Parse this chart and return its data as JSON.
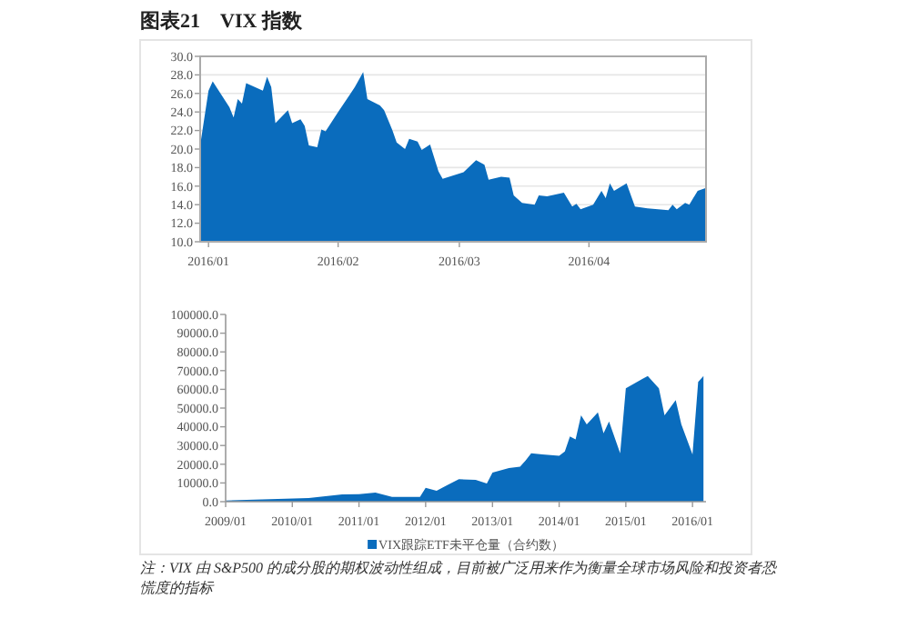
{
  "chart_data": [
    {
      "type": "area",
      "title": "图表21　VIX 指数",
      "color": "#0a6cbd",
      "grid": "y",
      "x": [
        "2015-12-30",
        "2016-01-01",
        "2016-01-02",
        "2016-01-06",
        "2016-01-07",
        "2016-01-08",
        "2016-01-09",
        "2016-01-10",
        "2016-01-14",
        "2016-01-15",
        "2016-01-16",
        "2016-01-17",
        "2016-01-20",
        "2016-01-21",
        "2016-01-23",
        "2016-01-24",
        "2016-01-25",
        "2016-01-27",
        "2016-01-28",
        "2016-01-29",
        "2016-02-01",
        "2016-02-04",
        "2016-02-05",
        "2016-02-07",
        "2016-02-08",
        "2016-02-11",
        "2016-02-12",
        "2016-02-14",
        "2016-02-15",
        "2016-02-17",
        "2016-02-18",
        "2016-02-20",
        "2016-02-21",
        "2016-02-23",
        "2016-02-25",
        "2016-02-26",
        "2016-03-02",
        "2016-03-05",
        "2016-03-07",
        "2016-03-08",
        "2016-03-11",
        "2016-03-13",
        "2016-03-14",
        "2016-03-16",
        "2016-03-19",
        "2016-03-20",
        "2016-03-22",
        "2016-03-26",
        "2016-03-28",
        "2016-03-29",
        "2016-03-30",
        "2016-04-02",
        "2016-04-04",
        "2016-04-05",
        "2016-04-06",
        "2016-04-07",
        "2016-04-10",
        "2016-04-12",
        "2016-04-15",
        "2016-04-20",
        "2016-04-21",
        "2016-04-22",
        "2016-04-24",
        "2016-04-25",
        "2016-04-27",
        "2016-04-29"
      ],
      "values": [
        20.4,
        26.3,
        27.3,
        24.5,
        23.4,
        25.4,
        24.9,
        27.1,
        26.3,
        27.8,
        26.7,
        22.8,
        24.2,
        22.8,
        23.2,
        22.5,
        20.4,
        20.2,
        22.1,
        21.9,
        24.0,
        26.0,
        26.7,
        28.3,
        25.4,
        24.7,
        24.2,
        22.0,
        20.7,
        20.0,
        21.1,
        20.8,
        19.9,
        20.5,
        17.6,
        16.8,
        17.5,
        18.8,
        18.3,
        16.7,
        17.0,
        16.9,
        15.0,
        14.2,
        14.0,
        15.0,
        14.9,
        15.3,
        13.8,
        14.1,
        13.5,
        14.0,
        15.5,
        14.7,
        16.3,
        15.5,
        16.3,
        13.8,
        13.6,
        13.4,
        14.0,
        13.5,
        14.2,
        14.0,
        15.5,
        15.8
      ],
      "xlim": [
        "2015-12-30",
        "2016-04-29"
      ],
      "xticks": [
        {
          "value": "2016-01-01",
          "label": "2016/01"
        },
        {
          "value": "2016-02-01",
          "label": "2016/02"
        },
        {
          "value": "2016-03-01",
          "label": "2016/03"
        },
        {
          "value": "2016-04-01",
          "label": "2016/04"
        }
      ],
      "ylim": [
        10,
        30
      ],
      "yticks": [
        {
          "value": 10,
          "label": "10.0"
        },
        {
          "value": 12,
          "label": "12.0"
        },
        {
          "value": 14,
          "label": "14.0"
        },
        {
          "value": 16,
          "label": "16.0"
        },
        {
          "value": 18,
          "label": "18.0"
        },
        {
          "value": 20,
          "label": "20.0"
        },
        {
          "value": 22,
          "label": "22.0"
        },
        {
          "value": 24,
          "label": "24.0"
        },
        {
          "value": 26,
          "label": "26.0"
        },
        {
          "value": 28,
          "label": "28.0"
        },
        {
          "value": 30,
          "label": "30.0"
        }
      ]
    },
    {
      "type": "area",
      "legend": "bottom",
      "x": [
        "2009-01",
        "2009-09",
        "2010-04",
        "2010-07",
        "2010-10",
        "2011-01",
        "2011-04",
        "2011-07",
        "2011-12",
        "2012-01",
        "2012-03",
        "2012-05",
        "2012-07",
        "2012-10",
        "2012-12",
        "2013-01",
        "2013-04",
        "2013-06",
        "2013-07",
        "2013-08",
        "2013-10",
        "2014-01",
        "2014-02",
        "2014-03",
        "2014-04",
        "2014-05",
        "2014-06",
        "2014-08",
        "2014-09",
        "2014-10",
        "2014-12",
        "2015-01",
        "2015-04",
        "2015-05",
        "2015-07",
        "2015-08",
        "2015-10",
        "2015-11",
        "2016-01",
        "2016-02",
        "2016-03"
      ],
      "series": [
        {
          "name": "VIX跟踪ETF未平仓量（合约数）",
          "color": "#0a6cbd",
          "values": [
            600,
            1300,
            2000,
            2900,
            3900,
            4000,
            4800,
            2600,
            2600,
            7400,
            5800,
            9000,
            12000,
            11600,
            9700,
            15500,
            18000,
            18700,
            22000,
            25800,
            25200,
            24500,
            26800,
            34800,
            33200,
            46100,
            41300,
            47700,
            36500,
            42900,
            25800,
            60600,
            65500,
            67100,
            60600,
            46100,
            54200,
            41300,
            25200,
            63900,
            67100
          ]
        }
      ],
      "xlim": [
        "2009-01-01",
        "2016-03-15"
      ],
      "xticks": [
        {
          "value": "2009-01-01",
          "label": "2009/01"
        },
        {
          "value": "2010-01-01",
          "label": "2010/01"
        },
        {
          "value": "2011-01-01",
          "label": "2011/01"
        },
        {
          "value": "2012-01-01",
          "label": "2012/01"
        },
        {
          "value": "2013-01-01",
          "label": "2013/01"
        },
        {
          "value": "2014-01-01",
          "label": "2014/01"
        },
        {
          "value": "2015-01-01",
          "label": "2015/01"
        },
        {
          "value": "2016-01-01",
          "label": "2016/01"
        }
      ],
      "ylim": [
        0,
        100000
      ],
      "yticks": [
        {
          "value": 0,
          "label": "0.0"
        },
        {
          "value": 10000,
          "label": "10000.0"
        },
        {
          "value": 20000,
          "label": "20000.0"
        },
        {
          "value": 30000,
          "label": "30000.0"
        },
        {
          "value": 40000,
          "label": "40000.0"
        },
        {
          "value": 50000,
          "label": "50000.0"
        },
        {
          "value": 60000,
          "label": "60000.0"
        },
        {
          "value": 70000,
          "label": "70000.0"
        },
        {
          "value": 80000,
          "label": "80000.0"
        },
        {
          "value": 90000,
          "label": "90000.0"
        },
        {
          "value": 100000,
          "label": "100000.0"
        }
      ],
      "annotations": [
        "注：VIX 由 S&P500 的成分股的期权波动性组成，目前被广泛用来作为衡量全球市场风险和投资者恐慌度的指标"
      ]
    }
  ]
}
